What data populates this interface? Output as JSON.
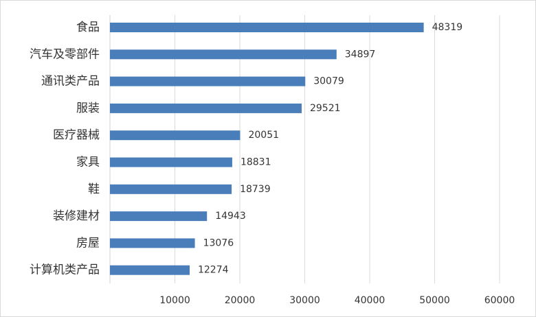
{
  "chart_data": {
    "type": "bar",
    "orientation": "horizontal",
    "categories": [
      "食品",
      "汽车及零部件",
      "通讯类产品",
      "服装",
      "医疗器械",
      "家具",
      "鞋",
      "装修建材",
      "房屋",
      "计算机类产品"
    ],
    "values": [
      48319,
      34897,
      30079,
      29521,
      20051,
      18831,
      18739,
      14943,
      13076,
      12274
    ],
    "color": "#4a7ebb",
    "xlim": [
      0,
      60000
    ],
    "xticks": [
      10000,
      20000,
      30000,
      40000,
      50000,
      60000
    ],
    "grid": true
  }
}
